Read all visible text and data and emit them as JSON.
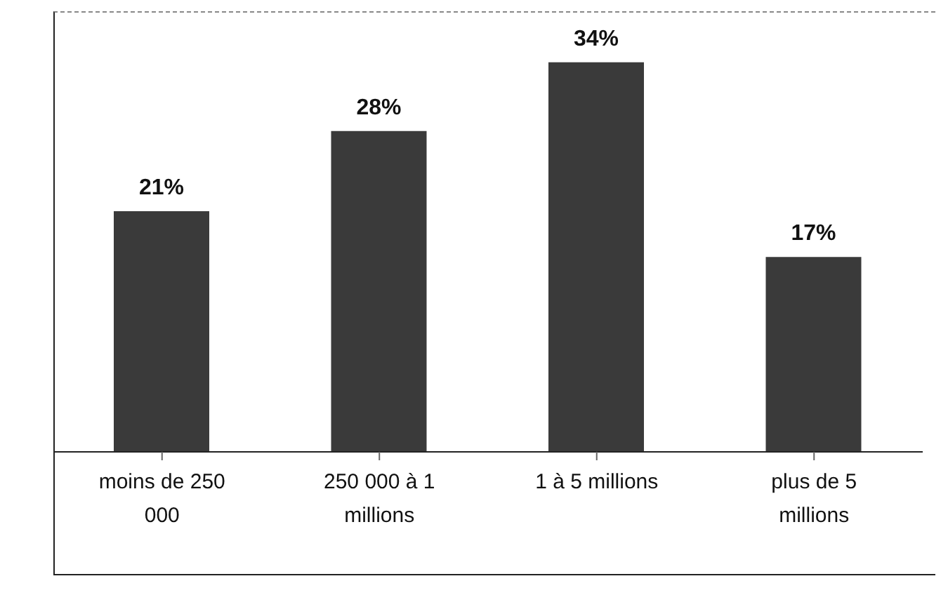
{
  "chart_data": {
    "type": "bar",
    "categories": [
      "moins de 250 000",
      "250 000 à 1 millions",
      "1 à 5 millions",
      "plus de 5 millions"
    ],
    "values": [
      21,
      28,
      34,
      17
    ],
    "value_labels": [
      "21%",
      "28%",
      "34%",
      "17%"
    ],
    "color": "#3a3a3a",
    "tick_labels": "x"
  }
}
